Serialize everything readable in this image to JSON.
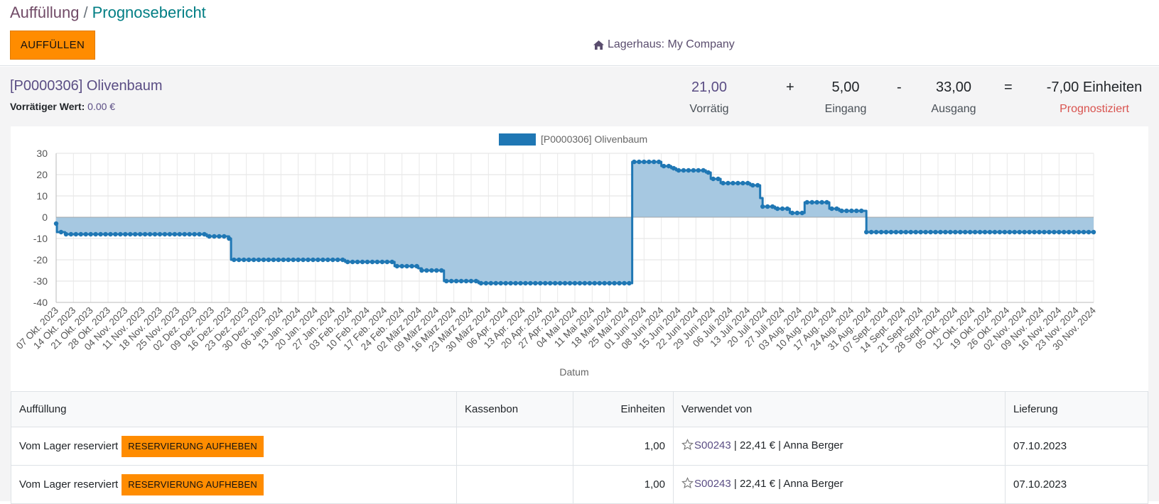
{
  "breadcrumb": {
    "parent": "Auffüllung",
    "separator": "/",
    "current": "Prognosebericht"
  },
  "toolbar": {
    "replenish_label": "AUFFÜLLEN"
  },
  "warehouse": {
    "icon": "home-icon",
    "label": "Lagerhaus: My Company"
  },
  "product": {
    "title": "[P0000306] Olivenbaum",
    "stock_value_label": "Vorrätiger Wert:",
    "stock_value": "0.00 €"
  },
  "summary": {
    "on_hand": {
      "value": "21,00",
      "label": "Vorrätig"
    },
    "plus": "+",
    "incoming": {
      "value": "5,00",
      "label": "Eingang"
    },
    "minus": "-",
    "outgoing": {
      "value": "33,00",
      "label": "Ausgang"
    },
    "equals": "=",
    "forecast": {
      "value": "-7,00 Einheiten",
      "label": "Prognostiziert"
    }
  },
  "colors": {
    "accent": "#ff8c00",
    "line": "#1f77b4",
    "fill": "#a6c8e1",
    "forecast_label": "#d9534f",
    "link": "#5a4d84"
  },
  "chart_data": {
    "type": "area",
    "legend": "[P0000306] Olivenbaum",
    "xlabel": "Datum",
    "ylim": [
      -40,
      30
    ],
    "yticks": [
      30,
      20,
      10,
      0,
      -10,
      -20,
      -30,
      -40
    ],
    "grid": true,
    "legend_position": "top",
    "categories": [
      "07 Okt. 2023",
      "14 Okt. 2023",
      "21 Okt. 2023",
      "28 Okt. 2023",
      "04 Nov. 2023",
      "11 Nov. 2023",
      "18 Nov. 2023",
      "25 Nov. 2023",
      "02 Dez. 2023",
      "09 Dez. 2023",
      "16 Dez. 2023",
      "23 Dez. 2023",
      "30 Dez. 2023",
      "06 Jan. 2024",
      "13 Jan. 2024",
      "20 Jan. 2024",
      "27 Jan. 2024",
      "03 Feb. 2024",
      "10 Feb. 2024",
      "17 Feb. 2024",
      "24 Feb. 2024",
      "02 März 2024",
      "09 März 2024",
      "16 März 2024",
      "23 März 2024",
      "30 März 2024",
      "06 Apr. 2024",
      "13 Apr. 2024",
      "20 Apr. 2024",
      "27 Apr. 2024",
      "04 Mai 2024",
      "11 Mai 2024",
      "18 Mai 2024",
      "25 Mai 2024",
      "01 Juni 2024",
      "08 Juni 2024",
      "15 Juni 2024",
      "22 Juni 2024",
      "29 Juni 2024",
      "06 Juli 2024",
      "13 Juli 2024",
      "20 Juli 2024",
      "27 Juli 2024",
      "03 Aug. 2024",
      "10 Aug. 2024",
      "17 Aug. 2024",
      "24 Aug. 2024",
      "31 Aug. 2024",
      "07 Sept. 2024",
      "14 Sept. 2024",
      "21 Sept. 2024",
      "28 Sept. 2024",
      "05 Okt. 2024",
      "12 Okt. 2024",
      "19 Okt. 2024",
      "26 Okt. 2024",
      "02 Nov. 2024",
      "09 Nov. 2024",
      "16 Nov. 2024",
      "23 Nov. 2024",
      "30 Nov. 2024"
    ],
    "series": [
      {
        "name": "[P0000306] Olivenbaum",
        "steps": [
          {
            "x": 0,
            "y": -3
          },
          {
            "x": 0.15,
            "y": -7
          },
          {
            "x": 1.8,
            "y": -8
          },
          {
            "x": 30.5,
            "y": -9
          },
          {
            "x": 35,
            "y": -10
          },
          {
            "x": 35.4,
            "y": -20
          },
          {
            "x": 58.5,
            "y": -21
          },
          {
            "x": 68.5,
            "y": -23
          },
          {
            "x": 73.3,
            "y": -24
          },
          {
            "x": 74,
            "y": -25
          },
          {
            "x": 78.5,
            "y": -30
          },
          {
            "x": 85.5,
            "y": -31
          },
          {
            "x": 116.5,
            "y": -31
          },
          {
            "x": 116.6,
            "y": 26
          },
          {
            "x": 122.5,
            "y": 24
          },
          {
            "x": 124.5,
            "y": 23
          },
          {
            "x": 125.5,
            "y": 22
          },
          {
            "x": 131.5,
            "y": 21
          },
          {
            "x": 132.5,
            "y": 18
          },
          {
            "x": 134.5,
            "y": 16
          },
          {
            "x": 140.5,
            "y": 15
          },
          {
            "x": 142.5,
            "y": 9
          },
          {
            "x": 143,
            "y": 5
          },
          {
            "x": 145.5,
            "y": 4
          },
          {
            "x": 148.5,
            "y": 2
          },
          {
            "x": 151.5,
            "y": 7
          },
          {
            "x": 156.5,
            "y": 4
          },
          {
            "x": 158.5,
            "y": 3
          },
          {
            "x": 163.5,
            "y": 3
          },
          {
            "x": 164,
            "y": -7
          },
          {
            "x": 210,
            "y": -7
          }
        ]
      }
    ]
  },
  "table": {
    "headers": {
      "replenishment": "Auffüllung",
      "receipt": "Kassenbon",
      "units": "Einheiten",
      "used_by": "Verwendet von",
      "delivery": "Lieferung"
    },
    "rows": [
      {
        "replenishment": "Vom Lager reserviert",
        "action": "RESERVIERUNG AUFHEBEN",
        "receipt": "",
        "units": "1,00",
        "order_ref": "S00243",
        "order_rest": " | 22,41 € | Anna Berger",
        "delivery": "07.10.2023"
      },
      {
        "replenishment": "Vom Lager reserviert",
        "action": "RESERVIERUNG AUFHEBEN",
        "receipt": "",
        "units": "1,00",
        "order_ref": "S00243",
        "order_rest": " | 22,41 € | Anna Berger",
        "delivery": "07.10.2023"
      }
    ]
  }
}
